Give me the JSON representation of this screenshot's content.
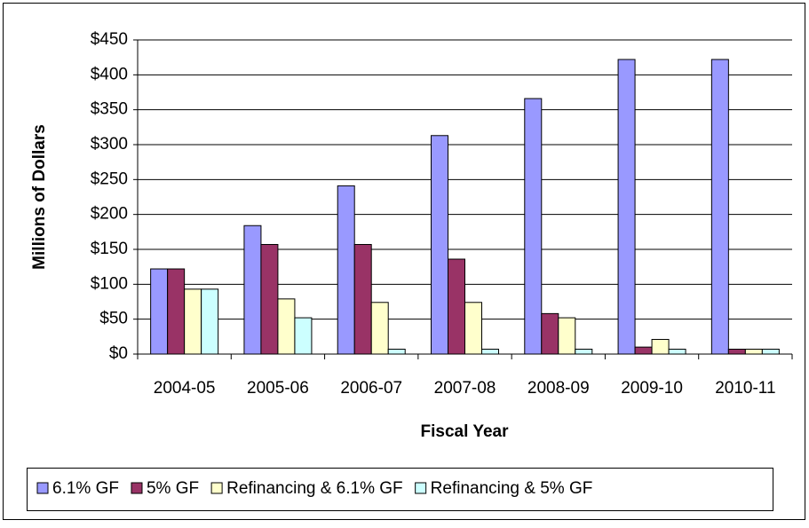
{
  "chart_data": {
    "type": "bar",
    "x_label": "Fiscal Year",
    "y_label": "Millions of Dollars",
    "categories": [
      "2004-05",
      "2005-06",
      "2006-07",
      "2007-08",
      "2008-09",
      "2009-10",
      "2010-11"
    ],
    "series": [
      {
        "name": "6.1% GF",
        "color": "#9999ff",
        "values": [
          122,
          184,
          241,
          313,
          366,
          422,
          422
        ]
      },
      {
        "name": "5% GF",
        "color": "#993366",
        "values": [
          122,
          157,
          157,
          136,
          58,
          10,
          7
        ]
      },
      {
        "name": "Refinancing & 6.1% GF",
        "color": "#ffffcc",
        "values": [
          93,
          79,
          74,
          74,
          52,
          21,
          7
        ]
      },
      {
        "name": "Refinancing & 5% GF",
        "color": "#ccffff",
        "values": [
          93,
          52,
          7,
          7,
          7,
          7,
          7
        ]
      }
    ],
    "ylim": [
      0,
      450
    ],
    "yticks": [
      {
        "value": 0,
        "label": "$0"
      },
      {
        "value": 50,
        "label": "$50"
      },
      {
        "value": 100,
        "label": "$100"
      },
      {
        "value": 150,
        "label": "$150"
      },
      {
        "value": 200,
        "label": "$200"
      },
      {
        "value": 250,
        "label": "$250"
      },
      {
        "value": 300,
        "label": "$300"
      },
      {
        "value": 350,
        "label": "$350"
      },
      {
        "value": 400,
        "label": "$400"
      },
      {
        "value": 450,
        "label": "$450"
      }
    ],
    "grid": true,
    "legend": "bottom"
  }
}
